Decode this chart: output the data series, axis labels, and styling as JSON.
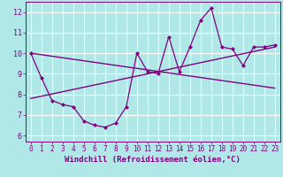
{
  "title": "",
  "xlabel": "Windchill (Refroidissement éolien,°C)",
  "ylabel": "",
  "bg_color": "#b0e8e8",
  "line_color": "#800080",
  "grid_color": "#ffffff",
  "xlim": [
    -0.5,
    23.5
  ],
  "ylim": [
    5.7,
    12.5
  ],
  "xticks": [
    0,
    1,
    2,
    3,
    4,
    5,
    6,
    7,
    8,
    9,
    10,
    11,
    12,
    13,
    14,
    15,
    16,
    17,
    18,
    19,
    20,
    21,
    22,
    23
  ],
  "yticks": [
    6,
    7,
    8,
    9,
    10,
    11,
    12
  ],
  "data_x": [
    0,
    1,
    2,
    3,
    4,
    5,
    6,
    7,
    8,
    9,
    10,
    11,
    12,
    13,
    14,
    15,
    16,
    17,
    18,
    19,
    20,
    21,
    22,
    23
  ],
  "data_y": [
    10.0,
    8.8,
    7.7,
    7.5,
    7.4,
    6.7,
    6.5,
    6.4,
    6.6,
    7.4,
    10.0,
    9.1,
    9.0,
    10.8,
    9.1,
    10.3,
    11.6,
    12.2,
    10.3,
    10.2,
    9.4,
    10.3,
    10.3,
    10.4
  ],
  "trend1_x": [
    0,
    23
  ],
  "trend1_y": [
    10.0,
    8.3
  ],
  "trend2_x": [
    0,
    23
  ],
  "trend2_y": [
    7.8,
    10.3
  ],
  "font_color": "#800080",
  "tick_fontsize": 5.5,
  "label_fontsize": 6.5
}
